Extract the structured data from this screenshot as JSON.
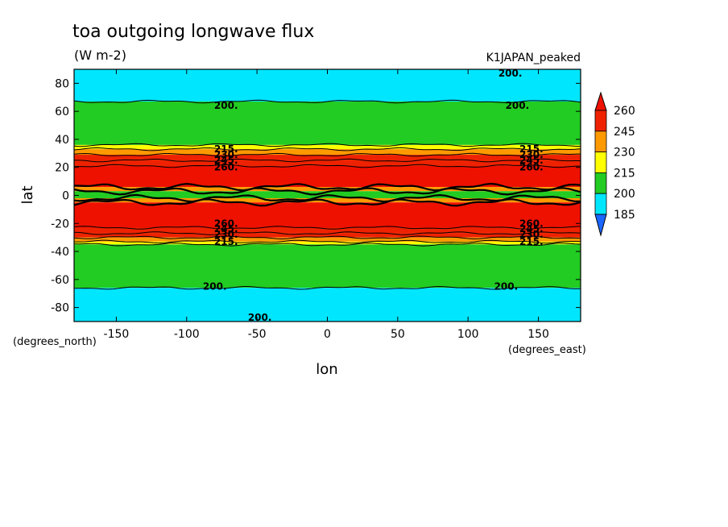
{
  "chart_data": {
    "type": "heatmap",
    "title": "toa outgoing longwave flux",
    "subtitle": "(W m-2)",
    "dataset_label": "K1JAPAN_peaked",
    "xlabel": "lon",
    "ylabel": "lat",
    "x_units": "(degrees_east)",
    "y_units": "(degrees_north)",
    "xlim": [
      -180,
      180
    ],
    "ylim": [
      -90,
      90
    ],
    "x_ticks": [
      -150,
      -100,
      -50,
      0,
      50,
      100,
      150
    ],
    "x_tick_labels": [
      "-150",
      "-100",
      "-50",
      "0",
      "50",
      "100",
      "150"
    ],
    "y_ticks": [
      80,
      60,
      40,
      20,
      0,
      -20,
      -40,
      -60,
      -80
    ],
    "y_tick_labels": [
      "80",
      "60",
      "40",
      "20",
      "0",
      "-20",
      "-40",
      "-60",
      "-80"
    ],
    "colorbar": {
      "levels": [
        185,
        200,
        215,
        230,
        245,
        260
      ],
      "labels": [
        "185",
        "200",
        "215",
        "230",
        "245",
        "260"
      ],
      "colors": [
        "#2f8ff0",
        "#00e6ff",
        "#22cc22",
        "#ffff00",
        "#ff9900",
        "#ee2200"
      ],
      "under_color": "#1a66ff",
      "over_color": "#ee1100"
    },
    "zonal_bands": [
      {
        "lat_min": 67,
        "lat_max": 90,
        "value": 195
      },
      {
        "lat_min": 36,
        "lat_max": 67,
        "value": 207
      },
      {
        "lat_min": 33,
        "lat_max": 36,
        "value": 222
      },
      {
        "lat_min": 29,
        "lat_max": 33,
        "value": 237
      },
      {
        "lat_min": 25,
        "lat_max": 29,
        "value": 250
      },
      {
        "lat_min": 21,
        "lat_max": 25,
        "value": 257
      },
      {
        "lat_min": 6,
        "lat_max": 21,
        "value": 265
      },
      {
        "lat_min": 3,
        "lat_max": 6,
        "value": 238
      },
      {
        "lat_min": -2,
        "lat_max": 3,
        "value": 205
      },
      {
        "lat_min": -5,
        "lat_max": -2,
        "value": 235
      },
      {
        "lat_min": -23,
        "lat_max": -5,
        "value": 265
      },
      {
        "lat_min": -27,
        "lat_max": -23,
        "value": 255
      },
      {
        "lat_min": -30,
        "lat_max": -27,
        "value": 247
      },
      {
        "lat_min": -33,
        "lat_max": -30,
        "value": 235
      },
      {
        "lat_min": -35,
        "lat_max": -33,
        "value": 222
      },
      {
        "lat_min": -66,
        "lat_max": -35,
        "value": 207
      },
      {
        "lat_min": -90,
        "lat_max": -66,
        "value": 195
      }
    ],
    "contour_labels": [
      {
        "text": "200.",
        "lon": -72,
        "lat": 64
      },
      {
        "text": "200.",
        "lon": 135,
        "lat": 64
      },
      {
        "text": "200.",
        "lon": 130,
        "lat": 87
      },
      {
        "text": "215.",
        "lon": -72,
        "lat": 33
      },
      {
        "text": "230.",
        "lon": -72,
        "lat": 29
      },
      {
        "text": "245.",
        "lon": -72,
        "lat": 25
      },
      {
        "text": "260.",
        "lon": -72,
        "lat": 20
      },
      {
        "text": "215.",
        "lon": 145,
        "lat": 33
      },
      {
        "text": "230.",
        "lon": 145,
        "lat": 29
      },
      {
        "text": "245.",
        "lon": 145,
        "lat": 25
      },
      {
        "text": "260.",
        "lon": 145,
        "lat": 20
      },
      {
        "text": "260.",
        "lon": -72,
        "lat": -20
      },
      {
        "text": "245.",
        "lon": -72,
        "lat": -24
      },
      {
        "text": "230.",
        "lon": -72,
        "lat": -28
      },
      {
        "text": "215.",
        "lon": -72,
        "lat": -33
      },
      {
        "text": "260.",
        "lon": 145,
        "lat": -20
      },
      {
        "text": "245.",
        "lon": 145,
        "lat": -24
      },
      {
        "text": "230.",
        "lon": 145,
        "lat": -28
      },
      {
        "text": "215.",
        "lon": 145,
        "lat": -33
      },
      {
        "text": "200.",
        "lon": -80,
        "lat": -65
      },
      {
        "text": "200.",
        "lon": 127,
        "lat": -65
      },
      {
        "text": "200.",
        "lon": -48,
        "lat": -87
      }
    ]
  }
}
